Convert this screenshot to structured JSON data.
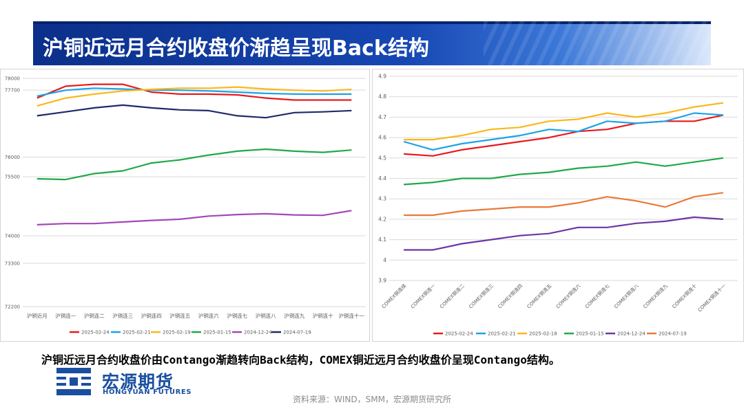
{
  "title": "沪铜近远月合约收盘价渐趋呈现Back结构",
  "summary": "沪铜近远月合约收盘价由Contango渐趋转向Back结构，COMEX铜近远月合约收盘价呈现Contango结构。",
  "logo": {
    "cn": "宏源期货",
    "en": "HONGYUAN FUTURES"
  },
  "source": "资料来源：WIND，SMM，宏源期货研究所",
  "chart_data": [
    {
      "type": "line",
      "title": "",
      "xlabel": "",
      "ylabel": "",
      "ylim": [
        72200,
        78000
      ],
      "yticks": [
        72200,
        73300,
        74000,
        75500,
        76000,
        77700,
        78000
      ],
      "ytick_labels": [
        "72200",
        "73300",
        "74000",
        "75500",
        "76000",
        "77700",
        "78000"
      ],
      "categories": [
        "沪铜近月",
        "沪铜连一",
        "沪铜连二",
        "沪铜连三",
        "沪铜连四",
        "沪铜连五",
        "沪铜连六",
        "沪铜连七",
        "沪铜连八",
        "沪铜连九",
        "沪铜连十",
        "沪铜连十一"
      ],
      "legend_position": "bottom",
      "grid": true,
      "series": [
        {
          "name": "2025-02-24",
          "color": "#e8191c",
          "values": [
            77500,
            77800,
            77850,
            77850,
            77650,
            77600,
            77600,
            77580,
            77500,
            77450,
            77450,
            77450
          ]
        },
        {
          "name": "2025-02-21",
          "color": "#1aa3e8",
          "values": [
            77550,
            77700,
            77750,
            77730,
            77700,
            77700,
            77680,
            77650,
            77620,
            77600,
            77600,
            77600
          ]
        },
        {
          "name": "2025-02-19",
          "color": "#fbb718",
          "values": [
            77300,
            77500,
            77600,
            77680,
            77720,
            77750,
            77750,
            77780,
            77730,
            77700,
            77680,
            77720
          ]
        },
        {
          "name": "2025-01-15",
          "color": "#1fa84a",
          "values": [
            75450,
            75430,
            75580,
            75650,
            75850,
            75930,
            76050,
            76150,
            76200,
            76150,
            76120,
            76180
          ]
        },
        {
          "name": "2024-12-24",
          "color": "#a347b7",
          "values": [
            74280,
            74310,
            74310,
            74350,
            74390,
            74420,
            74500,
            74540,
            74560,
            74530,
            74520,
            74640
          ]
        },
        {
          "name": "2024-07-19",
          "color": "#1e2a68",
          "values": [
            77050,
            77150,
            77250,
            77320,
            77250,
            77200,
            77180,
            77050,
            77000,
            77130,
            77150,
            77180
          ]
        }
      ]
    },
    {
      "type": "line",
      "title": "",
      "xlabel": "",
      "ylabel": "",
      "ylim": [
        3.9,
        4.9
      ],
      "yticks": [
        3.9,
        4.0,
        4.1,
        4.2,
        4.3,
        4.4,
        4.5,
        4.6,
        4.7,
        4.8,
        4.9
      ],
      "ytick_labels": [
        "3.9",
        "4",
        "4.1",
        "4.2",
        "4.3",
        "4.4",
        "4.5",
        "4.6",
        "4.7",
        "4.8",
        "4.9"
      ],
      "categories": [
        "COMEX铜连续",
        "COMEX铜连一",
        "COMEX铜连二",
        "COMEX铜连三",
        "COMEX铜连四",
        "COMEX铜连五",
        "COMEX铜连六",
        "COMEX铜连七",
        "COMEX铜连八",
        "COMEX铜连九",
        "COMEX铜连十",
        "COMEX铜连十一"
      ],
      "legend_position": "bottom",
      "grid": true,
      "series": [
        {
          "name": "2025-02-24",
          "color": "#e8191c",
          "values": [
            4.52,
            4.51,
            4.54,
            4.56,
            4.58,
            4.6,
            4.63,
            4.64,
            4.67,
            4.68,
            4.68,
            4.71
          ]
        },
        {
          "name": "2025-02-21",
          "color": "#1aa3e8",
          "values": [
            4.58,
            4.54,
            4.57,
            4.59,
            4.61,
            4.64,
            4.63,
            4.68,
            4.67,
            4.68,
            4.72,
            4.71
          ]
        },
        {
          "name": "2025-02-18",
          "color": "#fbb718",
          "values": [
            4.59,
            4.59,
            4.61,
            4.64,
            4.65,
            4.68,
            4.69,
            4.72,
            4.7,
            4.72,
            4.75,
            4.77
          ]
        },
        {
          "name": "2025-01-15",
          "color": "#1fa84a",
          "values": [
            4.37,
            4.38,
            4.4,
            4.4,
            4.42,
            4.43,
            4.45,
            4.46,
            4.48,
            4.46,
            4.48,
            4.5
          ]
        },
        {
          "name": "2024-12-24",
          "color": "#6c35a6",
          "values": [
            4.05,
            4.05,
            4.08,
            4.1,
            4.12,
            4.13,
            4.16,
            4.16,
            4.18,
            4.19,
            4.21,
            4.2
          ]
        },
        {
          "name": "2024-07-19",
          "color": "#e9793a",
          "values": [
            4.22,
            4.22,
            4.24,
            4.25,
            4.26,
            4.26,
            4.28,
            4.31,
            4.29,
            4.26,
            4.31,
            4.33
          ]
        }
      ]
    }
  ]
}
